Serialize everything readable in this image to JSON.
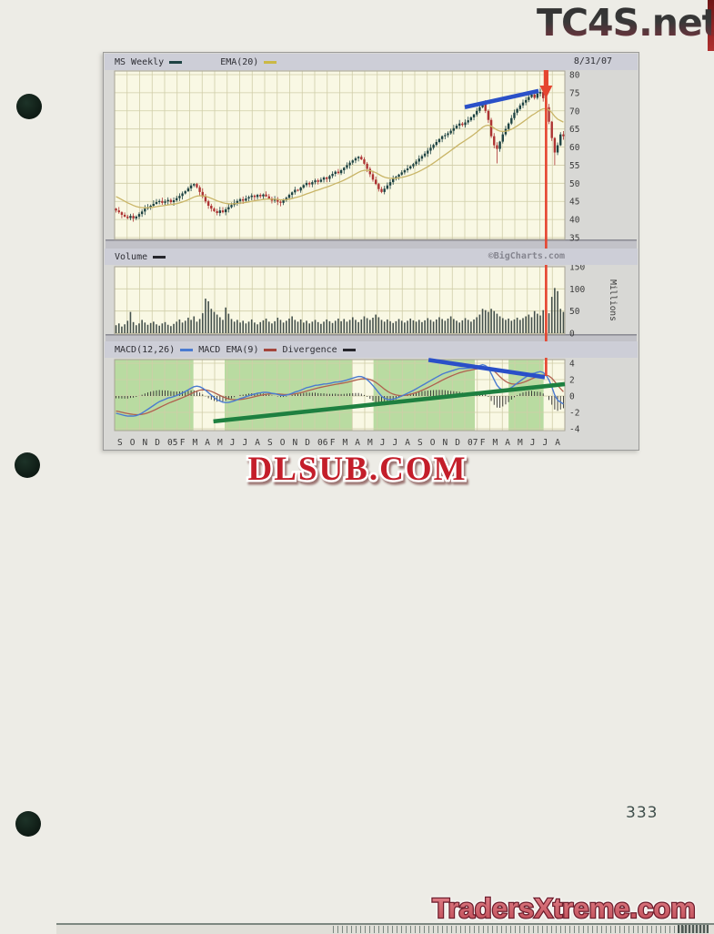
{
  "page": {
    "number": "333",
    "watermarks": {
      "top_right": "TC4S.net",
      "below_chart": "DLSUB.COM",
      "bottom_right": "TradersXtreme.com"
    }
  },
  "chart": {
    "price_header": {
      "symbol_label": "MS Weekly",
      "ema_label": "EMA(20)",
      "date": "8/31/07"
    },
    "volume_header": {
      "label": "Volume",
      "copyright": "©BigCharts.com"
    },
    "macd_header": {
      "macd_label": "MACD(12,26)",
      "signal_label": "MACD EMA(9)",
      "divergence_label": "Divergence"
    },
    "colors": {
      "candle_up": "#1e4343",
      "candle_down": "#ad3333",
      "ema": "#c9b567",
      "volume_bar": "#44504c",
      "macd_line": "#4a7bd0",
      "signal_line": "#b0604e",
      "histogram": "#2e2e2e",
      "green_band": "#aed695",
      "trend_blue": "#2a50c8",
      "trend_green": "#1e8040",
      "annotation_red": "#e54530",
      "plot_bg": "#f9f8e4",
      "grid": "#d0cda8",
      "border": "#a8a494",
      "strip": "#c2c2c8",
      "axis_text": "#3b3b3b"
    }
  },
  "chart_data": [
    {
      "type": "candlestick",
      "title": "MS Weekly",
      "overlay": "EMA(20)",
      "as_of": "8/31/07",
      "ylim": [
        35,
        80
      ],
      "yticks": [
        80,
        75,
        70,
        65,
        60,
        55,
        50,
        45,
        40,
        35
      ],
      "weekly_closes": [
        42.5,
        42.0,
        41.3,
        40.8,
        40.4,
        41.0,
        40.3,
        40.8,
        41.5,
        42.2,
        43.0,
        43.4,
        43.8,
        44.3,
        44.8,
        45.1,
        44.6,
        45.0,
        45.4,
        44.8,
        45.3,
        45.9,
        46.5,
        47.2,
        47.8,
        48.6,
        49.4,
        49.8,
        48.9,
        47.6,
        46.3,
        45.0,
        43.8,
        43.0,
        42.3,
        41.8,
        42.5,
        42.0,
        42.8,
        43.4,
        44.0,
        44.6,
        45.1,
        45.6,
        45.2,
        45.8,
        46.2,
        46.6,
        46.2,
        46.8,
        46.4,
        46.9,
        46.4,
        45.8,
        45.2,
        45.6,
        44.9,
        44.6,
        45.3,
        46.0,
        46.8,
        47.5,
        48.2,
        48.0,
        48.8,
        49.5,
        50.1,
        49.7,
        50.3,
        50.8,
        50.4,
        51.0,
        51.6,
        51.2,
        52.0,
        52.6,
        53.2,
        52.8,
        53.6,
        54.3,
        55.0,
        55.7,
        56.3,
        56.9,
        57.3,
        56.6,
        55.4,
        54.0,
        52.5,
        51.0,
        49.8,
        48.4,
        47.6,
        48.5,
        49.4,
        50.3,
        51.2,
        51.8,
        52.4,
        53.0,
        53.6,
        54.1,
        54.7,
        55.3,
        56.0,
        56.8,
        57.5,
        58.2,
        59.0,
        59.8,
        60.6,
        61.4,
        62.2,
        63.0,
        63.3,
        63.8,
        64.5,
        65.2,
        65.9,
        66.5,
        66.1,
        66.8,
        67.4,
        68.2,
        69.0,
        70.0,
        71.0,
        72.0,
        70.0,
        67.5,
        63.0,
        60.5,
        59.5,
        61.5,
        63.5,
        65.0,
        66.5,
        68.0,
        69.5,
        70.5,
        71.5,
        72.3,
        73.0,
        73.8,
        74.5,
        73.6,
        74.8,
        75.2,
        73.5,
        71.0,
        67.0,
        62.5,
        58.5,
        60.5,
        63.5,
        63.0
      ],
      "wick_low_overrides": {
        "132": 55.5,
        "152": 55.0
      },
      "trendline": {
        "from_month": 28.0,
        "from_value": 71.0,
        "to_month": 33.9,
        "to_value": 75.5
      },
      "arrow_month": 34.5
    },
    {
      "type": "bar",
      "title": "Volume",
      "unit": "Millions",
      "ylim": [
        0,
        150
      ],
      "yticks": [
        150,
        100,
        50,
        0
      ],
      "values": [
        18,
        22,
        15,
        20,
        28,
        48,
        25,
        18,
        22,
        30,
        24,
        19,
        23,
        26,
        20,
        17,
        22,
        25,
        19,
        16,
        21,
        26,
        31,
        24,
        28,
        35,
        30,
        38,
        26,
        32,
        45,
        78,
        72,
        55,
        48,
        42,
        36,
        30,
        58,
        44,
        32,
        26,
        30,
        24,
        28,
        22,
        26,
        31,
        24,
        20,
        25,
        29,
        33,
        26,
        22,
        27,
        35,
        30,
        24,
        28,
        33,
        38,
        30,
        26,
        31,
        24,
        28,
        22,
        26,
        30,
        25,
        21,
        26,
        31,
        27,
        23,
        28,
        33,
        27,
        32,
        26,
        30,
        36,
        30,
        25,
        31,
        38,
        34,
        30,
        35,
        42,
        36,
        30,
        26,
        31,
        27,
        23,
        27,
        32,
        28,
        24,
        28,
        33,
        29,
        26,
        30,
        25,
        29,
        34,
        30,
        26,
        31,
        36,
        32,
        28,
        33,
        38,
        32,
        28,
        24,
        29,
        34,
        30,
        26,
        31,
        36,
        42,
        55,
        52,
        48,
        55,
        50,
        44,
        38,
        34,
        30,
        33,
        28,
        31,
        35,
        30,
        34,
        38,
        42,
        36,
        50,
        44,
        40,
        52,
        75,
        45,
        82,
        102,
        95,
        55,
        48
      ]
    },
    {
      "type": "line",
      "title": "MACD(12,26)",
      "series_labels": [
        "MACD(12,26)",
        "MACD EMA(9)",
        "Divergence"
      ],
      "params": {
        "fast": 12,
        "slow": 26,
        "signal": 9
      },
      "ylim": [
        -4,
        4
      ],
      "yticks": [
        4,
        2,
        0,
        -2,
        -4
      ],
      "green_band_months": [
        [
          0,
          6.3
        ],
        [
          8.8,
          19.0
        ],
        [
          20.7,
          28.8
        ],
        [
          31.5,
          34.3
        ]
      ],
      "trendline_down": {
        "from_month": 25.1,
        "from_value": 4.4,
        "to_month": 34.4,
        "to_value": 2.3
      },
      "trendline_up": {
        "from_month": 7.9,
        "from_value": -3.1,
        "to_month": 36.0,
        "to_value": 1.45
      }
    }
  ],
  "x_axis": {
    "labels": [
      "S",
      "O",
      "N",
      "D",
      "05",
      "F",
      "M",
      "A",
      "M",
      "J",
      "J",
      "A",
      "S",
      "O",
      "N",
      "D",
      "06",
      "F",
      "M",
      "A",
      "M",
      "J",
      "J",
      "A",
      "S",
      "O",
      "N",
      "D",
      "07",
      "F",
      "M",
      "A",
      "M",
      "J",
      "J",
      "A"
    ],
    "months": 36,
    "weeks": 156
  }
}
